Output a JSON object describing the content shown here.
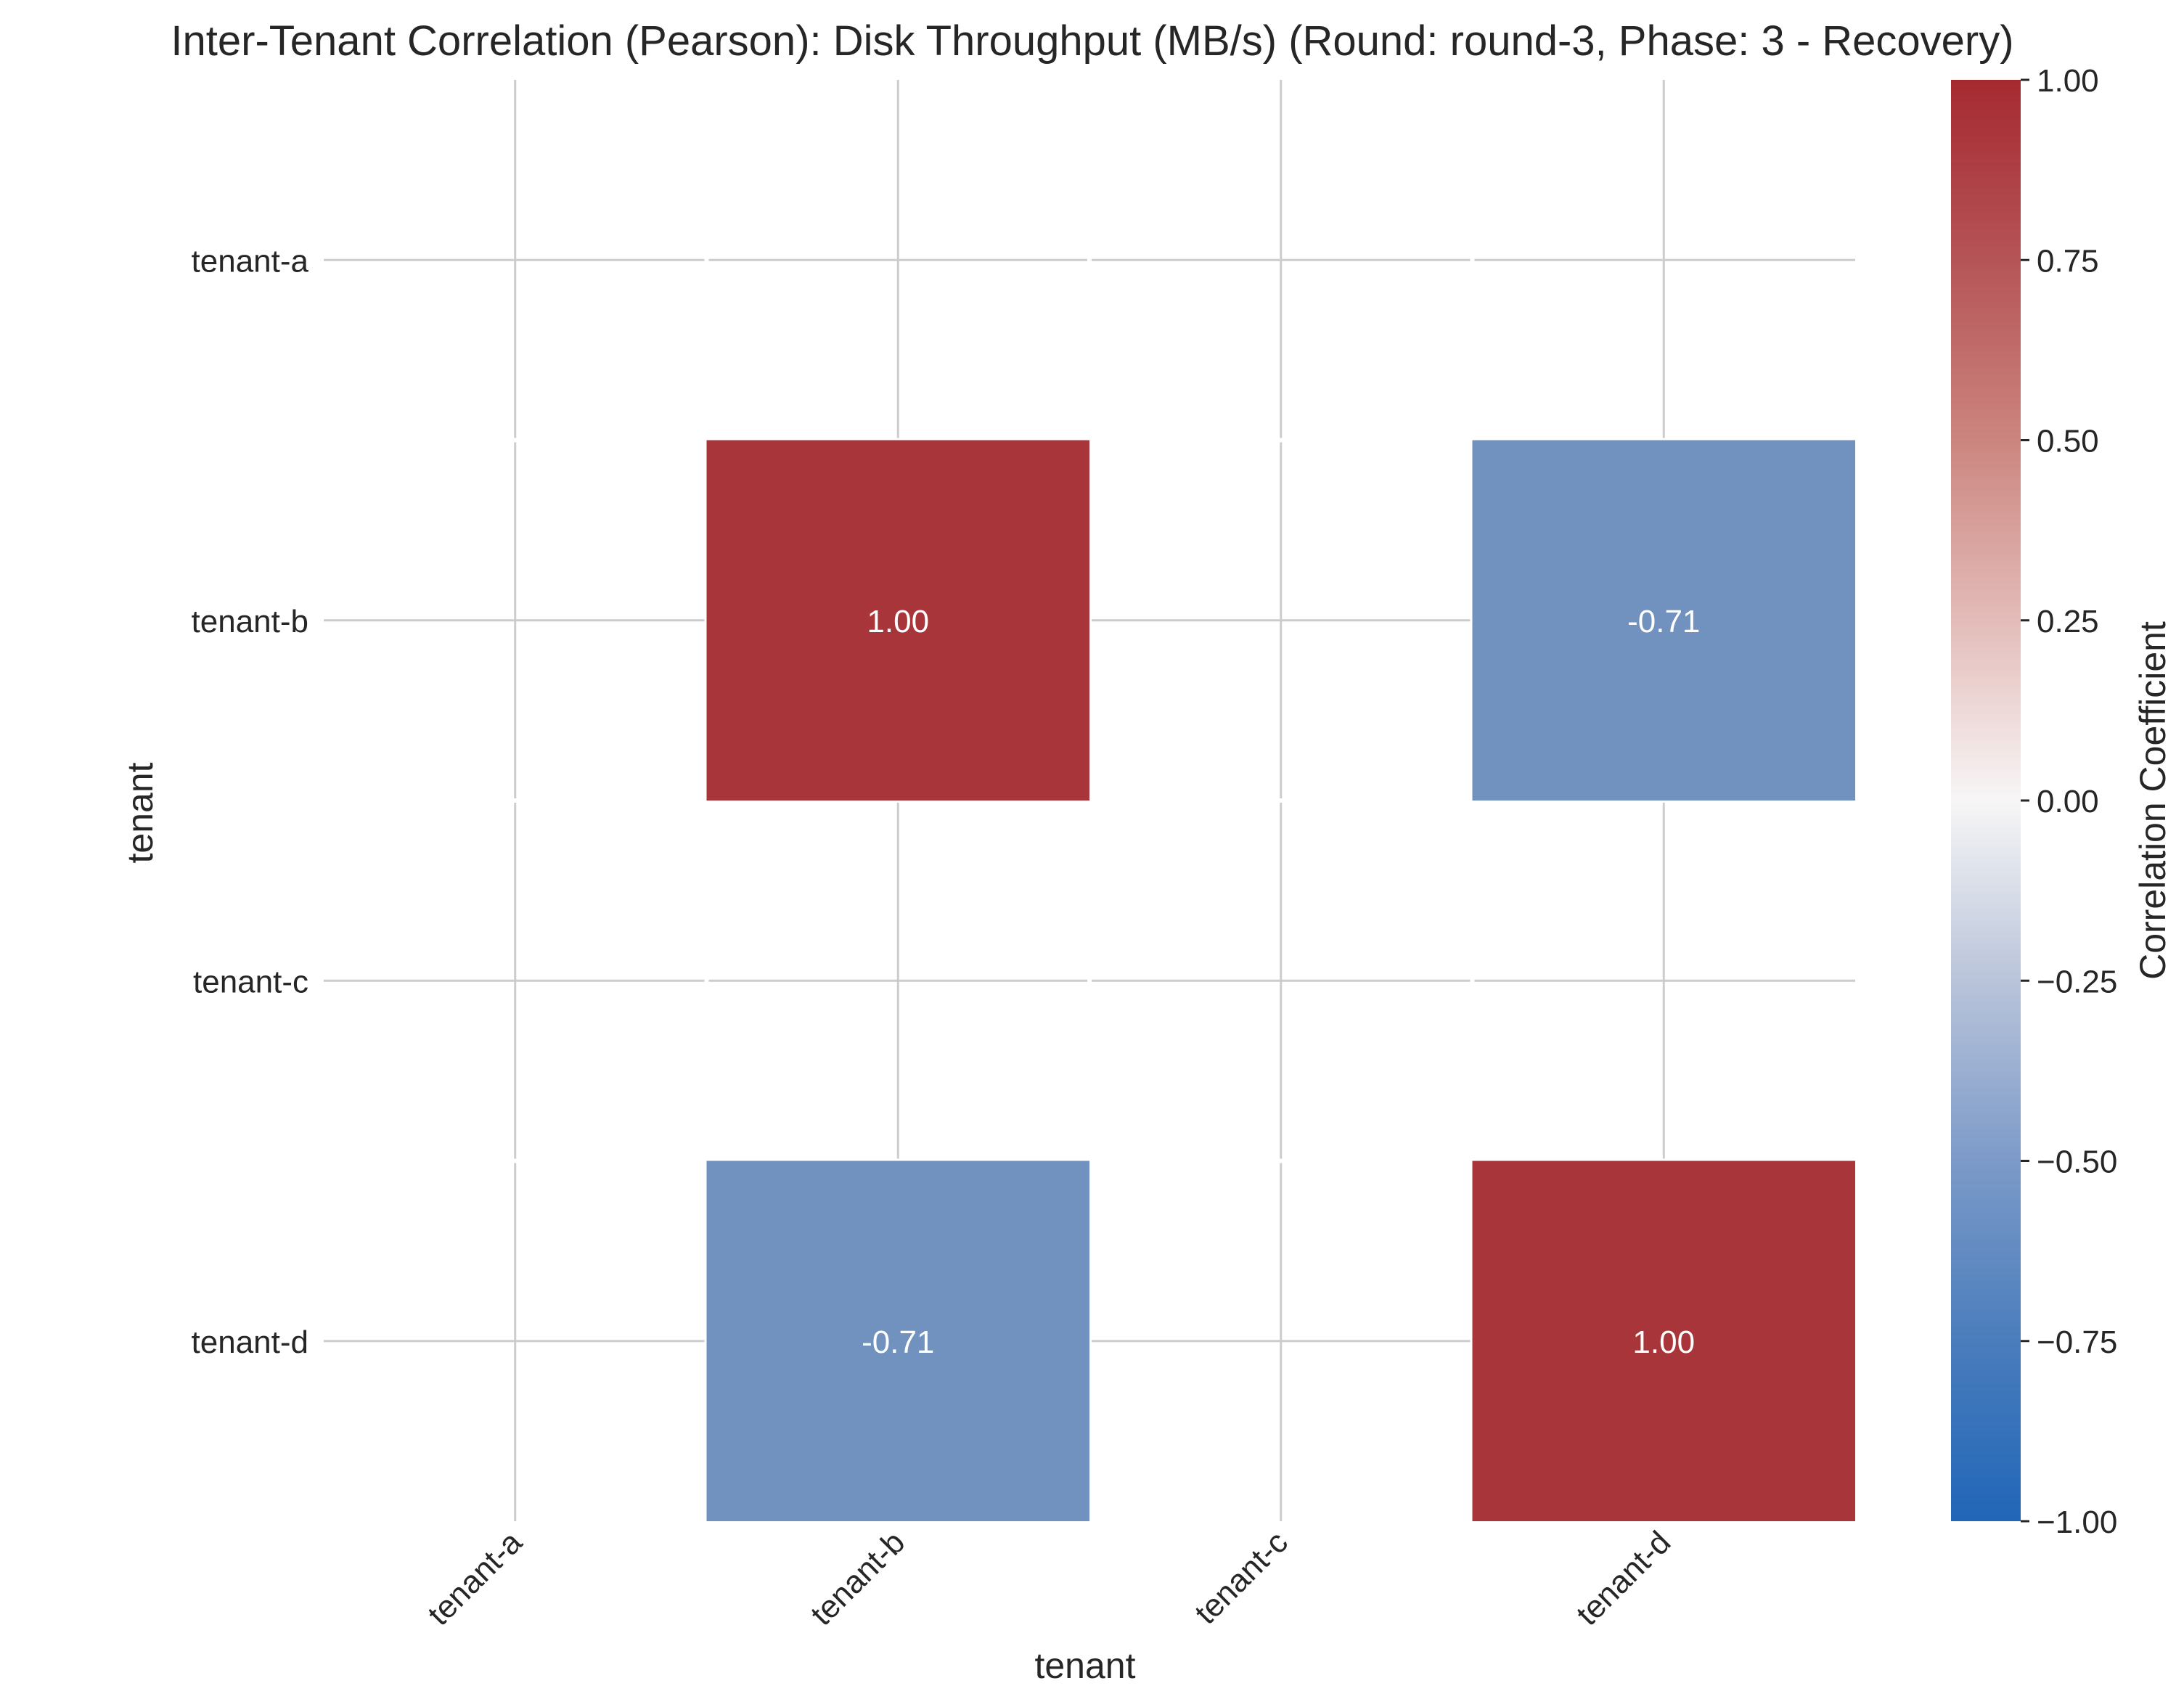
{
  "chart_data": {
    "type": "heatmap",
    "title": "Inter-Tenant Correlation (Pearson): Disk Throughput (MB/s) (Round: round-3, Phase: 3 - Recovery)",
    "xlabel": "tenant",
    "ylabel": "tenant",
    "x_categories": [
      "tenant-a",
      "tenant-b",
      "tenant-c",
      "tenant-d"
    ],
    "y_categories": [
      "tenant-a",
      "tenant-b",
      "tenant-c",
      "tenant-d"
    ],
    "values": [
      [
        null,
        null,
        null,
        null
      ],
      [
        null,
        1.0,
        null,
        -0.71
      ],
      [
        null,
        null,
        null,
        null
      ],
      [
        null,
        -0.71,
        null,
        1.0
      ]
    ],
    "value_labels": [
      [
        null,
        null,
        null,
        null
      ],
      [
        null,
        "1.00",
        null,
        "-0.71"
      ],
      [
        null,
        null,
        null,
        null
      ],
      [
        null,
        "-0.71",
        null,
        "1.00"
      ]
    ],
    "colorbar": {
      "label": "Correlation Coefficient",
      "range": [
        -1.0,
        1.0
      ],
      "ticks": [
        "1.00",
        "0.75",
        "0.50",
        "0.25",
        "0.00",
        "−0.25",
        "−0.50",
        "−0.75",
        "−1.00"
      ],
      "colormap": "vlag"
    },
    "grid": true,
    "colors": {
      "positive": "#a8353a",
      "negative": "#7192bf",
      "grid": "#cccccc",
      "text_on_cell": "#ffffff",
      "label_text": "#262626"
    }
  }
}
